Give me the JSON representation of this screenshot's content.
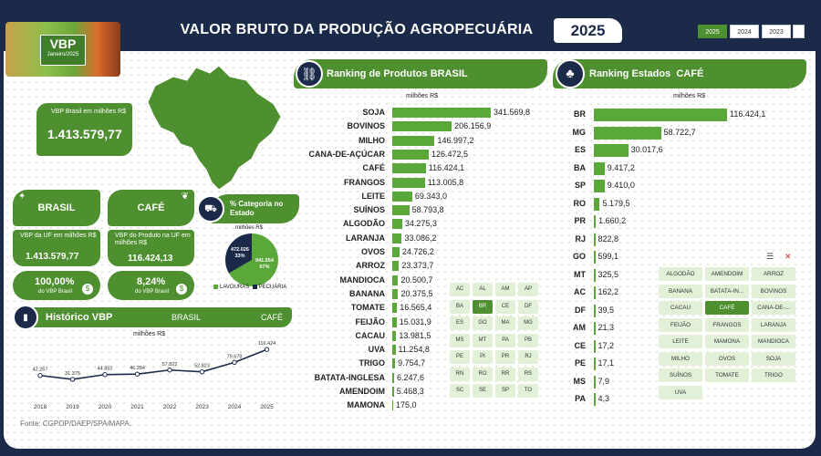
{
  "header": {
    "title": "VALOR BRUTO DA PRODUÇÃO AGROPECUÁRIA",
    "year": "2025",
    "year_buttons": [
      "2025",
      "2024",
      "2023"
    ],
    "logo_title": "VBP",
    "logo_subtitle": "Janeiro/2025"
  },
  "summary": {
    "label": "VBP Brasil em milhões R$",
    "value": "1.413.579,77"
  },
  "left_cards": {
    "state_title": "BRASIL",
    "crop_title": "CAFÉ",
    "state_vbp_label": "VBP da UF em milhões R$",
    "state_vbp_value": "1.413.579,77",
    "crop_vbp_label": "VBP do Produto na UF em milhões R$",
    "crop_vbp_value": "116.424,13",
    "state_pct": "100,00%",
    "state_pct_label": "do VBP Brasil",
    "crop_pct": "8,24%",
    "crop_pct_label": "do VBP Brasil"
  },
  "category": {
    "title": "% Categoria no Estado",
    "unit": "milhões R$",
    "lavouras_value": "941.554",
    "lavouras_pct": "67%",
    "pecuaria_value": "472.026",
    "pecuaria_pct": "33%",
    "legend_lavouras": "LAVOURAS",
    "legend_pecuaria": "PECUÁRIA",
    "lavouras_fraction": 0.666,
    "colors": {
      "lavouras": "#5aa83a",
      "pecuaria": "#1c2a4a"
    }
  },
  "historico": {
    "title": "Histórico VBP",
    "state": "BRASIL",
    "crop": "CAFÉ",
    "unit": "milhões R$"
  },
  "chart_data": [
    {
      "type": "line",
      "x": [
        "2018",
        "2019",
        "2020",
        "2021",
        "2022",
        "2023",
        "2024",
        "2025"
      ],
      "values": [
        42267,
        31375,
        44852,
        46284,
        57822,
        52823,
        79678,
        116424
      ],
      "labels": [
        "42.267",
        "31.375",
        "44.852",
        "46.284",
        "57.822",
        "52.823",
        "79.678",
        "116.424"
      ],
      "ylim": [
        0,
        130000
      ]
    },
    {
      "type": "bar",
      "title": "Ranking de Produtos BRASIL",
      "unit": "milhões R$",
      "categories": [
        "SOJA",
        "BOVINOS",
        "MILHO",
        "CANA-DE-AÇÚCAR",
        "CAFÉ",
        "FRANGOS",
        "LEITE",
        "SUÍNOS",
        "ALGODÃO",
        "LARANJA",
        "OVOS",
        "ARROZ",
        "MANDIOCA",
        "BANANA",
        "TOMATE",
        "FEIJÃO",
        "CACAU",
        "UVA",
        "TRIGO",
        "BATATA-INGLESA",
        "AMENDOIM",
        "MAMONA"
      ],
      "values": [
        341569.8,
        206156.9,
        146997.2,
        126472.5,
        116424.1,
        113005.8,
        69343.0,
        58793.8,
        34275.3,
        33086.2,
        24726.2,
        23373.7,
        20500.7,
        20375.5,
        16565.4,
        15031.9,
        13981.5,
        11254.8,
        9754.7,
        6247.6,
        5468.3,
        175.0
      ],
      "labels": [
        "341.569,8",
        "206.156,9",
        "146.997,2",
        "126.472,5",
        "116.424,1",
        "113.005,8",
        "69.343,0",
        "58.793,8",
        "34.275,3",
        "33.086,2",
        "24.726,2",
        "23.373,7",
        "20.500,7",
        "20.375,5",
        "16.565,4",
        "15.031,9",
        "13.981,5",
        "11.254,8",
        "9.754,7",
        "6.247,6",
        "5.468,3",
        "175,0"
      ]
    },
    {
      "type": "bar",
      "title": "Ranking Estados CAFÉ",
      "unit": "milhões R$",
      "categories": [
        "BR",
        "MG",
        "ES",
        "BA",
        "SP",
        "RO",
        "PR",
        "RJ",
        "GO",
        "MT",
        "AC",
        "DF",
        "AM",
        "CE",
        "PE",
        "MS",
        "PA"
      ],
      "values": [
        116424.1,
        58722.7,
        30017.6,
        9417.2,
        9410.0,
        5179.5,
        1660.2,
        822.8,
        599.1,
        325.5,
        162.2,
        39.5,
        21.3,
        17.2,
        17.1,
        7.9,
        4.3
      ],
      "labels": [
        "116.424,1",
        "58.722,7",
        "30.017,6",
        "9.417,2",
        "9.410,0",
        "5.179,5",
        "1.660,2",
        "822,8",
        "599,1",
        "325,5",
        "162,2",
        "39,5",
        "21,3",
        "17,2",
        "17,1",
        "7,9",
        "4,3"
      ]
    }
  ],
  "products_panel": {
    "title_prefix": "Ranking de Produtos",
    "title_bold": "BRASIL",
    "unit": "milhões R$"
  },
  "states_panel": {
    "title_prefix": "Ranking Estados",
    "title_bold": "CAFÉ",
    "unit": "milhões R$"
  },
  "uf_slicer": [
    "AC",
    "AL",
    "AM",
    "AP",
    "BA",
    "BR",
    "CE",
    "DF",
    "ES",
    "GO",
    "MA",
    "MG",
    "MS",
    "MT",
    "PA",
    "PB",
    "PE",
    "PI",
    "PR",
    "RJ",
    "RN",
    "RO",
    "RR",
    "RS",
    "SC",
    "SE",
    "SP",
    "TO"
  ],
  "uf_selected": "BR",
  "crop_slicer": [
    "ALGODÃO",
    "AMENDOIM",
    "ARROZ",
    "BANANA",
    "BATATA-IN...",
    "BOVINOS",
    "CACAU",
    "CAFÉ",
    "CANA-DE-...",
    "FEIJÃO",
    "FRANGOS",
    "LARANJA",
    "LEITE",
    "MAMONA",
    "MANDIOCA",
    "MILHO",
    "OVOS",
    "SOJA",
    "SUÍNOS",
    "TOMATE",
    "TRIGO",
    "UVA"
  ],
  "crop_selected": "CAFÉ",
  "footer": {
    "source": "Fonte: CGPOP/DAEP/SPA/MAPA."
  }
}
